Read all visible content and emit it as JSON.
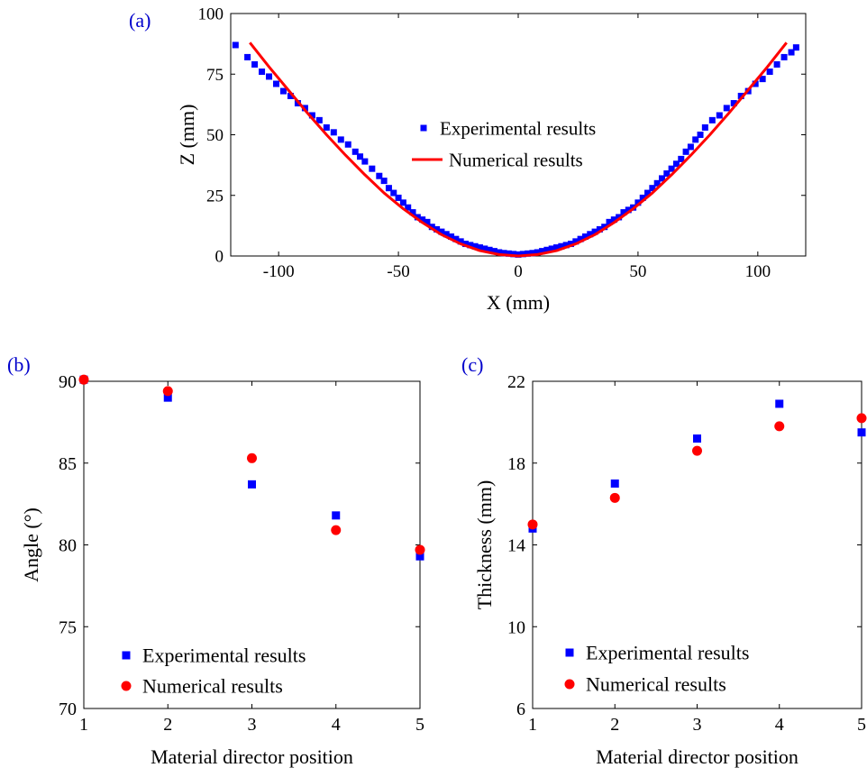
{
  "panels": {
    "a": {
      "label": "(a)"
    },
    "b": {
      "label": "(b)"
    },
    "c": {
      "label": "(c)"
    }
  },
  "colors": {
    "experimental": "#0000ff",
    "numerical": "#ff0000",
    "panel_label": "#0000cc",
    "axis": "#000000"
  },
  "chart_data": [
    {
      "id": "a",
      "type": "scatter",
      "title": "",
      "xlabel": "X (mm)",
      "ylabel": "Z (mm)",
      "xlim": [
        -120,
        120
      ],
      "ylim": [
        0,
        100
      ],
      "xticks": [
        -100,
        -50,
        0,
        50,
        100
      ],
      "xtick_labels": [
        "-100",
        "-50",
        "0",
        "50",
        "100"
      ],
      "yticks": [
        0,
        25,
        50,
        75,
        100
      ],
      "ytick_labels": [
        "0",
        "25",
        "50",
        "75",
        "100"
      ],
      "grid": false,
      "legend": "center-right",
      "series": [
        {
          "name": "Experimental results",
          "marker": "square",
          "color": "#0000ff",
          "x": [
            -118,
            -113,
            -110,
            -107,
            -104,
            -101,
            -98,
            -95,
            -92,
            -89,
            -86,
            -83,
            -80,
            -77,
            -74,
            -71,
            -68,
            -66,
            -64,
            -61,
            -58,
            -56,
            -54,
            -52,
            -50,
            -48,
            -46,
            -44,
            -42,
            -40,
            -38,
            -36,
            -34,
            -32,
            -30,
            -28,
            -26,
            -24,
            -22,
            -20,
            -18,
            -16,
            -14,
            -12,
            -10,
            -8,
            -6,
            -4,
            -2,
            0,
            2,
            4,
            6,
            8,
            10,
            12,
            14,
            16,
            18,
            20,
            22,
            24,
            26,
            28,
            30,
            32,
            34,
            36,
            38,
            40,
            42,
            44,
            46,
            48,
            50,
            52,
            54,
            56,
            58,
            60,
            62,
            64,
            66,
            68,
            70,
            72,
            74,
            76,
            78,
            81,
            84,
            87,
            90,
            93,
            96,
            99,
            102,
            105,
            108,
            111,
            114,
            116
          ],
          "y": [
            87,
            82,
            79,
            76,
            74,
            71,
            68,
            66,
            63,
            61,
            58,
            56,
            53,
            51,
            48,
            46,
            43,
            41,
            39,
            36,
            33,
            31,
            28,
            26,
            24,
            22,
            20,
            18,
            16,
            15,
            14,
            12,
            11,
            10,
            9,
            8,
            7,
            6,
            5,
            4.5,
            4,
            3.5,
            3,
            2.5,
            2,
            1.5,
            1.2,
            1,
            0.8,
            0.6,
            0.8,
            1,
            1.2,
            1.5,
            2,
            2.5,
            3,
            3.5,
            4,
            4.5,
            5,
            6,
            7,
            8,
            9,
            10,
            11,
            12,
            14,
            15,
            16,
            18,
            19,
            20,
            22,
            24,
            26,
            28,
            30,
            32,
            34,
            36,
            38,
            40,
            43,
            45,
            48,
            50,
            53,
            56,
            58,
            61,
            63,
            66,
            68,
            71,
            73,
            76,
            79,
            82,
            84,
            86
          ]
        },
        {
          "name": "Numerical results",
          "marker": "line",
          "color": "#ff0000",
          "x": [
            -112,
            -104,
            -96,
            -88,
            -80,
            -72,
            -64,
            -56,
            -48,
            -40,
            -32,
            -24,
            -16,
            -8,
            0,
            8,
            16,
            24,
            32,
            40,
            48,
            56,
            64,
            72,
            80,
            88,
            96,
            104,
            112
          ],
          "y": [
            88,
            78,
            68.5,
            59,
            50,
            41.5,
            33.5,
            26,
            19.5,
            13.8,
            8.8,
            5,
            2.2,
            0.6,
            0,
            0.6,
            2.2,
            5,
            8.8,
            13.8,
            19.5,
            26,
            33.5,
            41.5,
            50,
            59,
            68.5,
            78,
            88
          ]
        }
      ]
    },
    {
      "id": "b",
      "type": "scatter",
      "title": "",
      "xlabel": "Material director position",
      "ylabel": "Angle (°)",
      "xlim": [
        1,
        5
      ],
      "ylim": [
        70,
        90
      ],
      "xticks": [
        1,
        2,
        3,
        4,
        5
      ],
      "xtick_labels": [
        "1",
        "2",
        "3",
        "4",
        "5"
      ],
      "yticks": [
        70,
        75,
        80,
        85,
        90
      ],
      "ytick_labels": [
        "70",
        "75",
        "80",
        "85",
        "90"
      ],
      "grid": false,
      "legend": "bottom-left",
      "series": [
        {
          "name": "Experimental results",
          "marker": "square",
          "color": "#0000ff",
          "x": [
            1,
            2,
            3,
            4,
            5
          ],
          "y": [
            90.1,
            89.0,
            83.7,
            81.8,
            79.3
          ]
        },
        {
          "name": "Numerical results",
          "marker": "circle",
          "color": "#ff0000",
          "x": [
            1,
            2,
            3,
            4,
            5
          ],
          "y": [
            90.1,
            89.4,
            85.3,
            80.9,
            79.7
          ]
        }
      ]
    },
    {
      "id": "c",
      "type": "scatter",
      "title": "",
      "xlabel": "Material director position",
      "ylabel": "Thickness (mm)",
      "xlim": [
        1,
        5
      ],
      "ylim": [
        6,
        22
      ],
      "xticks": [
        1,
        2,
        3,
        4,
        5
      ],
      "xtick_labels": [
        "1",
        "2",
        "3",
        "4",
        "5"
      ],
      "yticks": [
        6,
        10,
        14,
        18,
        22
      ],
      "ytick_labels": [
        "6",
        "10",
        "14",
        "18",
        "22"
      ],
      "grid": false,
      "legend": "bottom-left",
      "series": [
        {
          "name": "Experimental results",
          "marker": "square",
          "color": "#0000ff",
          "x": [
            1,
            2,
            3,
            4,
            5
          ],
          "y": [
            14.8,
            17.0,
            19.2,
            20.9,
            19.5
          ]
        },
        {
          "name": "Numerical results",
          "marker": "circle",
          "color": "#ff0000",
          "x": [
            1,
            2,
            3,
            4,
            5
          ],
          "y": [
            15.0,
            16.3,
            18.6,
            19.8,
            20.2
          ]
        }
      ]
    }
  ]
}
